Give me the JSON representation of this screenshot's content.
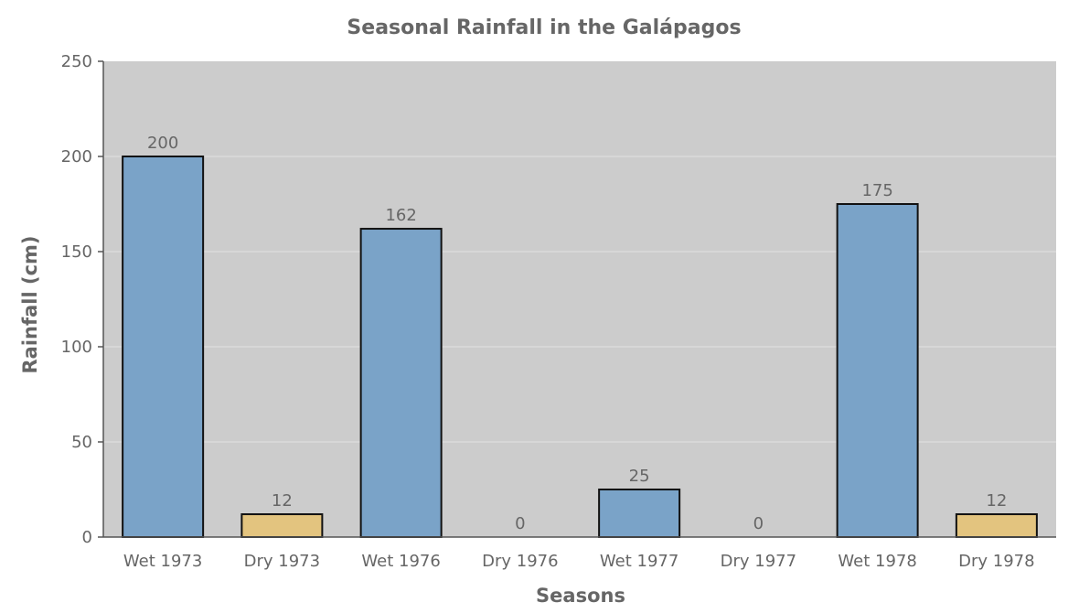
{
  "chart_data": {
    "type": "bar",
    "title": "Seasonal Rainfall in the Galápagos",
    "xlabel": "Seasons",
    "ylabel": "Rainfall (cm)",
    "categories": [
      "Wet 1973",
      "Dry 1973",
      "Wet 1976",
      "Dry 1976",
      "Wet 1977",
      "Dry 1977",
      "Wet 1978",
      "Dry 1978"
    ],
    "values": [
      200,
      12,
      162,
      0,
      25,
      0,
      175,
      12
    ],
    "value_labels": [
      "200",
      "12",
      "162",
      "0",
      "25",
      "0",
      "175",
      "12"
    ],
    "season_type": [
      "wet",
      "dry",
      "wet",
      "dry",
      "wet",
      "dry",
      "wet",
      "dry"
    ],
    "ylim": [
      0,
      250
    ],
    "yticks": [
      0,
      50,
      100,
      150,
      200,
      250
    ],
    "ytick_labels": [
      "0",
      "50",
      "100",
      "150",
      "200",
      "250"
    ],
    "grid": true,
    "legend": "none",
    "colors": {
      "wet": "#7aa3c8",
      "dry": "#e3c47f",
      "plot_background": "#cccccc",
      "grid": "#e2e2e2",
      "bar_edge": "#111111",
      "axis": "#555555",
      "text": "#666666"
    }
  }
}
